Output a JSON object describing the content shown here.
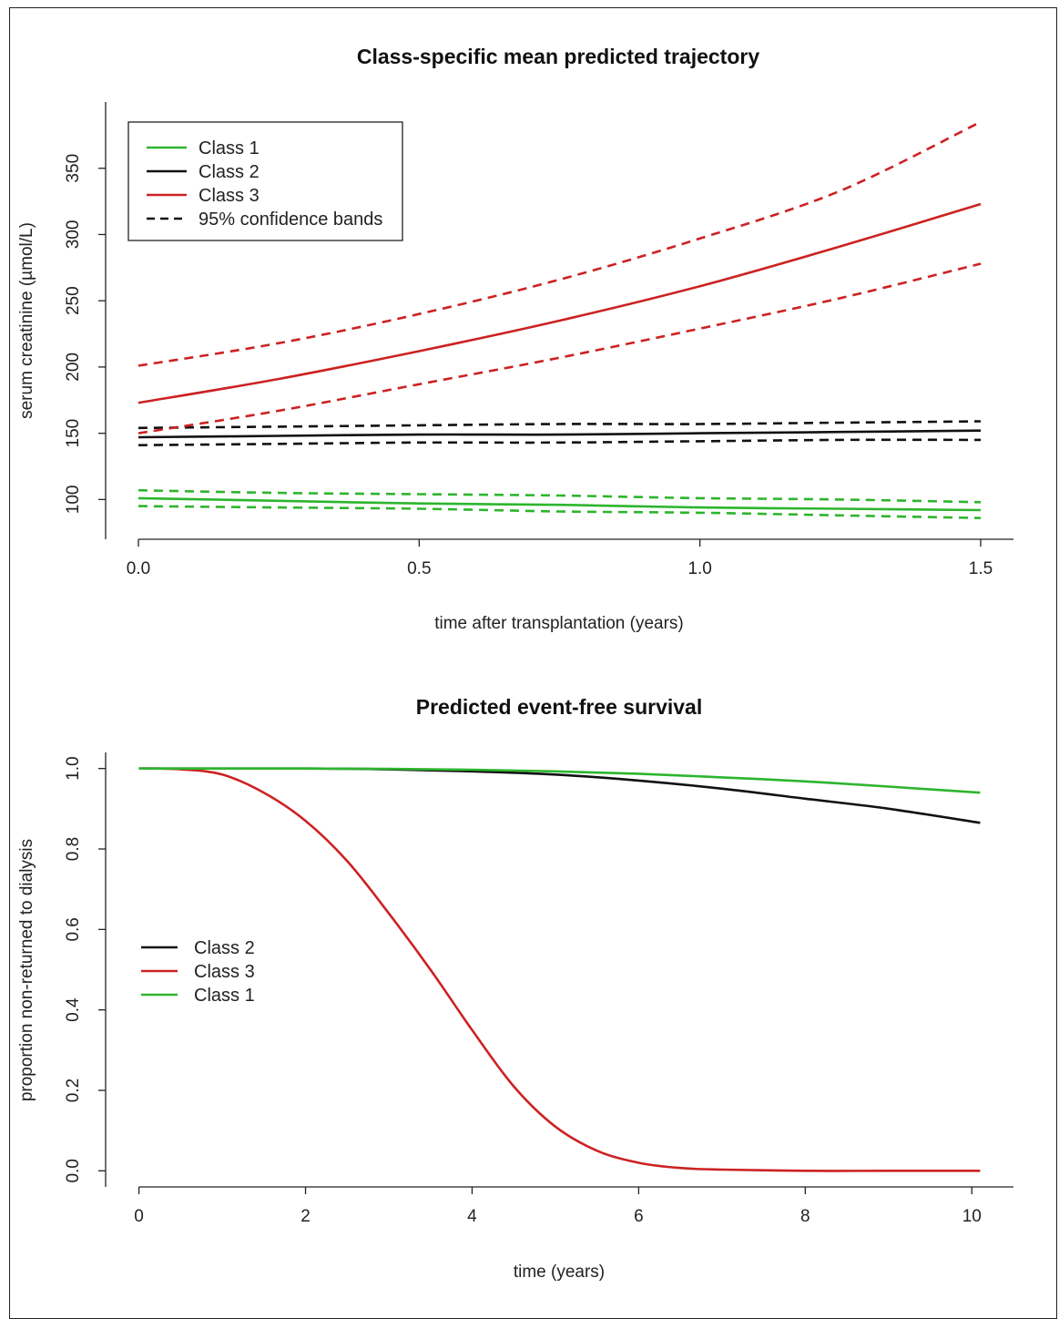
{
  "chart_data": [
    {
      "type": "line",
      "title": "Class-specific mean predicted trajectory",
      "xlabel": "time after transplantation (years)",
      "ylabel": "serum creatinine (µmol/L)",
      "xlim": [
        0,
        1.5
      ],
      "ylim": [
        70,
        400
      ],
      "xticks": [
        "0.0",
        "0.5",
        "1.0",
        "1.5"
      ],
      "xtick_values": [
        0,
        0.5,
        1.0,
        1.5
      ],
      "yticks": [
        "100",
        "150",
        "200",
        "250",
        "300",
        "350"
      ],
      "ytick_values": [
        100,
        150,
        200,
        250,
        300,
        350
      ],
      "legend_position": "top-left",
      "legend": [
        {
          "label": "Class 1",
          "color": "#2db52d",
          "dash": "solid"
        },
        {
          "label": "Class 2",
          "color": "#111111",
          "dash": "solid"
        },
        {
          "label": "Class 3",
          "color": "#cc2222",
          "dash": "solid"
        },
        {
          "label": "95% confidence bands",
          "color": "#111111",
          "dash": "dashed"
        }
      ],
      "x": [
        0,
        0.25,
        0.5,
        0.75,
        1.0,
        1.25,
        1.5
      ],
      "series": [
        {
          "name": "Class 1",
          "color": "#2db52d",
          "dash": "solid",
          "values": [
            101,
            99,
            97,
            96,
            94,
            93,
            92
          ]
        },
        {
          "name": "Class 1",
          "color": "#2db52d",
          "dash": "dashed",
          "values": [
            107,
            105,
            104,
            103,
            101,
            100,
            98
          ]
        },
        {
          "name": "Class 1",
          "color": "#2db52d",
          "dash": "dashed",
          "values": [
            95,
            94,
            93,
            91,
            90,
            88,
            86
          ]
        },
        {
          "name": "Class 2",
          "color": "#111111",
          "dash": "solid",
          "values": [
            147,
            148,
            149,
            149,
            150,
            151,
            152
          ]
        },
        {
          "name": "Class 2",
          "color": "#111111",
          "dash": "dashed",
          "values": [
            154,
            155,
            156,
            157,
            157,
            158,
            159
          ]
        },
        {
          "name": "Class 2",
          "color": "#111111",
          "dash": "dashed",
          "values": [
            141,
            142,
            143,
            143,
            144,
            145,
            145
          ]
        },
        {
          "name": "Class 3",
          "color": "#cc2222",
          "dash": "solid",
          "values": [
            173,
            191,
            212,
            235,
            261,
            291,
            323
          ]
        },
        {
          "name": "Class 3",
          "color": "#cc2222",
          "dash": "dashed",
          "values": [
            201,
            218,
            240,
            266,
            297,
            333,
            385
          ]
        },
        {
          "name": "Class 3",
          "color": "#cc2222",
          "dash": "dashed",
          "values": [
            150,
            167,
            187,
            207,
            229,
            252,
            278
          ]
        }
      ]
    },
    {
      "type": "line",
      "title": "Predicted event-free survival",
      "xlabel": "time (years)",
      "ylabel": "proportion non-returned to dialysis",
      "xlim": [
        -0.4,
        10.5
      ],
      "ylim": [
        -0.04,
        1.04
      ],
      "xticks": [
        "0",
        "2",
        "4",
        "6",
        "8",
        "10"
      ],
      "xtick_values": [
        0,
        2,
        4,
        6,
        8,
        10
      ],
      "yticks": [
        "0.0",
        "0.2",
        "0.4",
        "0.6",
        "0.8",
        "1.0"
      ],
      "ytick_values": [
        0,
        0.2,
        0.4,
        0.6,
        0.8,
        1.0
      ],
      "legend_position": "center-left",
      "legend": [
        {
          "label": "Class 2",
          "color": "#111111"
        },
        {
          "label": "Class 3",
          "color": "#cc2222"
        },
        {
          "label": "Class 1",
          "color": "#2db52d"
        }
      ],
      "series": [
        {
          "name": "Class 2",
          "color": "#111111",
          "x": [
            0,
            1,
            2,
            3,
            4,
            5,
            6,
            7,
            8,
            9,
            10.1
          ],
          "values": [
            1.0,
            1.0,
            1.0,
            0.998,
            0.993,
            0.985,
            0.97,
            0.95,
            0.925,
            0.9,
            0.865
          ]
        },
        {
          "name": "Class 3",
          "color": "#cc2222",
          "x": [
            0,
            0.5,
            1,
            1.5,
            2,
            2.5,
            3,
            3.5,
            4,
            4.5,
            5,
            5.5,
            6,
            6.5,
            7,
            8,
            9,
            10.1
          ],
          "values": [
            1.0,
            0.998,
            0.985,
            0.94,
            0.87,
            0.77,
            0.64,
            0.5,
            0.35,
            0.21,
            0.11,
            0.05,
            0.02,
            0.007,
            0.003,
            0.0,
            0.0,
            0.0
          ]
        },
        {
          "name": "Class 1",
          "color": "#2db52d",
          "x": [
            0,
            1,
            2,
            3,
            4,
            5,
            6,
            7,
            8,
            9,
            10.1
          ],
          "values": [
            1.0,
            1.0,
            1.0,
            0.999,
            0.997,
            0.993,
            0.987,
            0.978,
            0.968,
            0.955,
            0.94
          ]
        }
      ]
    }
  ]
}
